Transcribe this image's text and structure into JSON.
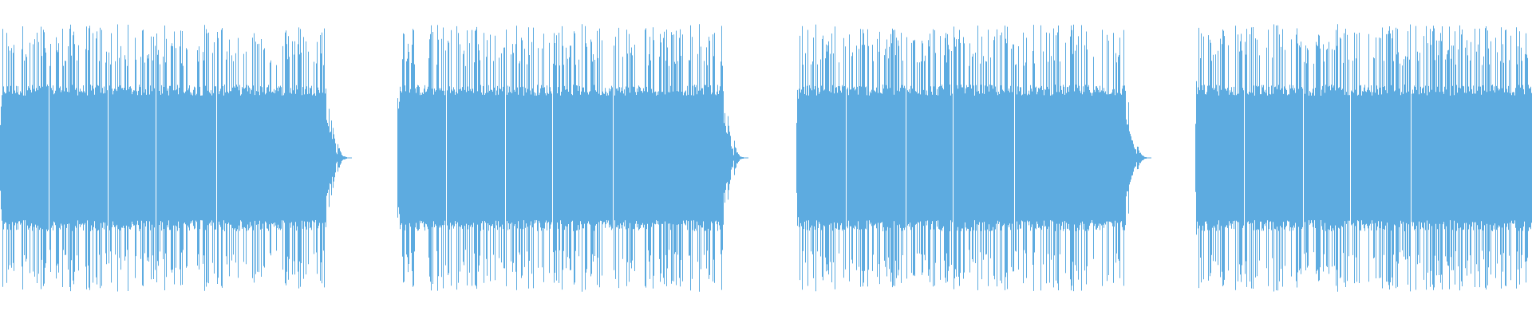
{
  "waveform": {
    "color": "#5dabe0"
  }
}
